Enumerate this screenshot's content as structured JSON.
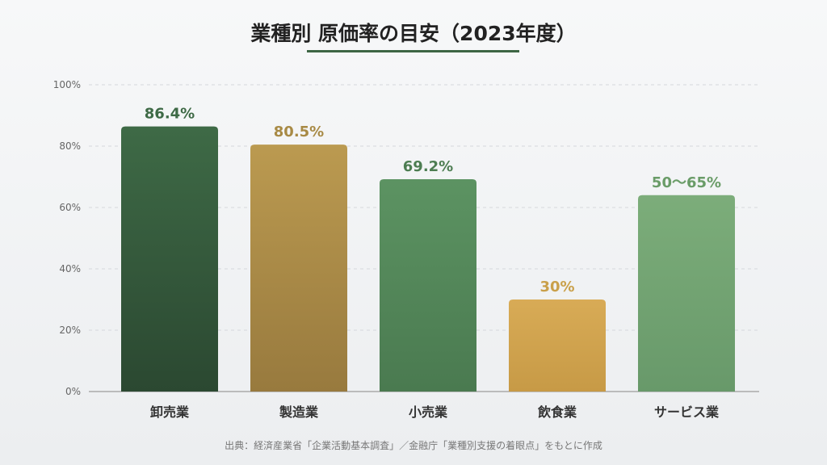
{
  "chart_data": {
    "type": "bar",
    "title": "業種別 原価率の目安（2023年度）",
    "categories": [
      "卸売業",
      "製造業",
      "小売業",
      "飲食業",
      "サービス業"
    ],
    "values": [
      86.4,
      80.5,
      69.2,
      30,
      64
    ],
    "data_labels": [
      "86.4%",
      "80.5%",
      "69.2%",
      "30%",
      "50〜65%"
    ],
    "colors": [
      [
        "#3e6a46",
        "#2b4831"
      ],
      [
        "#bb9a50",
        "#987a3e"
      ],
      [
        "#5c9362",
        "#4a7a50"
      ],
      [
        "#d8ab56",
        "#c79a46"
      ],
      [
        "#7cad7a",
        "#68996a"
      ]
    ],
    "label_colors": [
      "#3e6a46",
      "#a88a45",
      "#4d7d52",
      "#c9a04a",
      "#6a9c68"
    ],
    "ylim": [
      0,
      100
    ],
    "yticks": [
      "0%",
      "20%",
      "40%",
      "60%",
      "80%",
      "100%"
    ],
    "grid": true,
    "source": "出典：経済産業省「企業活動基本調査」／金融庁「業種別支援の着眼点」をもとに作成"
  }
}
